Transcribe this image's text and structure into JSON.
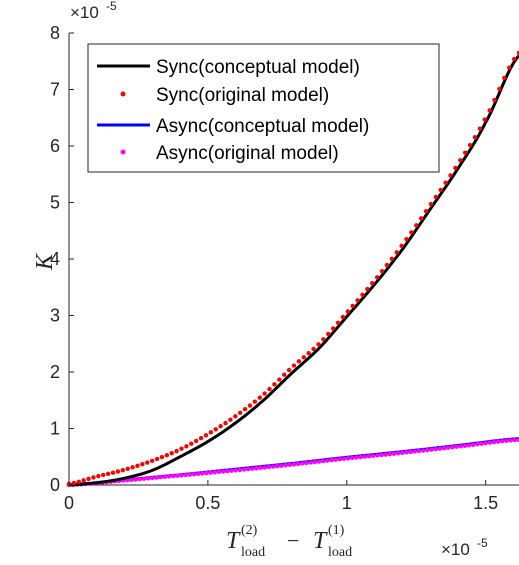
{
  "chart_data": {
    "type": "line",
    "title": "",
    "ylabel": "K",
    "xlabel": {
      "main_left": "T",
      "sup_left": "(2)",
      "sub_left": "load",
      "operator": "−",
      "main_right": "T",
      "sup_right": "(1)",
      "sub_right": "load"
    },
    "x_exponent": {
      "base": "×10",
      "power": "-5"
    },
    "y_exponent": {
      "base": "×10",
      "power": "-5"
    },
    "xlim": [
      0,
      1.62
    ],
    "ylim": [
      0,
      8
    ],
    "x_ticks": [
      0,
      0.5,
      1,
      1.5
    ],
    "x_tick_labels": [
      "0",
      "0.5",
      "1",
      "1.5"
    ],
    "y_ticks": [
      0,
      1,
      2,
      3,
      4,
      5,
      6,
      7,
      8
    ],
    "y_tick_labels": [
      "0",
      "1",
      "2",
      "3",
      "4",
      "5",
      "6",
      "7",
      "8"
    ],
    "grid": false,
    "legend_position": "top-left",
    "series": [
      {
        "name": "Sync(conceptual model)",
        "style": "line",
        "color": "#000000",
        "x": [
          0,
          0.1,
          0.2,
          0.3,
          0.4,
          0.5,
          0.6,
          0.7,
          0.8,
          0.9,
          1.0,
          1.1,
          1.2,
          1.3,
          1.4,
          1.5,
          1.62
        ],
        "y": [
          0,
          0.04,
          0.12,
          0.26,
          0.5,
          0.77,
          1.1,
          1.5,
          1.97,
          2.42,
          2.98,
          3.55,
          4.17,
          4.88,
          5.6,
          6.42,
          7.6
        ]
      },
      {
        "name": "Sync(original model)",
        "style": "dots",
        "color": "#ff0000",
        "x": [
          0,
          0.1,
          0.2,
          0.3,
          0.4,
          0.5,
          0.6,
          0.7,
          0.8,
          0.9,
          1.0,
          1.1,
          1.2,
          1.3,
          1.4,
          1.5,
          1.62
        ],
        "y": [
          0.02,
          0.15,
          0.27,
          0.43,
          0.63,
          0.9,
          1.22,
          1.6,
          2.07,
          2.5,
          3.05,
          3.62,
          4.25,
          4.95,
          5.68,
          6.5,
          7.65
        ]
      },
      {
        "name": "Async(conceptual model)",
        "style": "line",
        "color": "#0000ff",
        "x": [
          0,
          0.2,
          0.4,
          0.6,
          0.8,
          1.0,
          1.2,
          1.4,
          1.62
        ],
        "y": [
          0,
          0.09,
          0.18,
          0.28,
          0.38,
          0.49,
          0.59,
          0.7,
          0.82
        ]
      },
      {
        "name": "Async(original model)",
        "style": "dots",
        "color": "#ff00ff",
        "x": [
          0,
          0.2,
          0.4,
          0.6,
          0.8,
          1.0,
          1.2,
          1.4,
          1.62
        ],
        "y": [
          0,
          0.08,
          0.17,
          0.26,
          0.36,
          0.47,
          0.57,
          0.68,
          0.8
        ]
      }
    ]
  }
}
